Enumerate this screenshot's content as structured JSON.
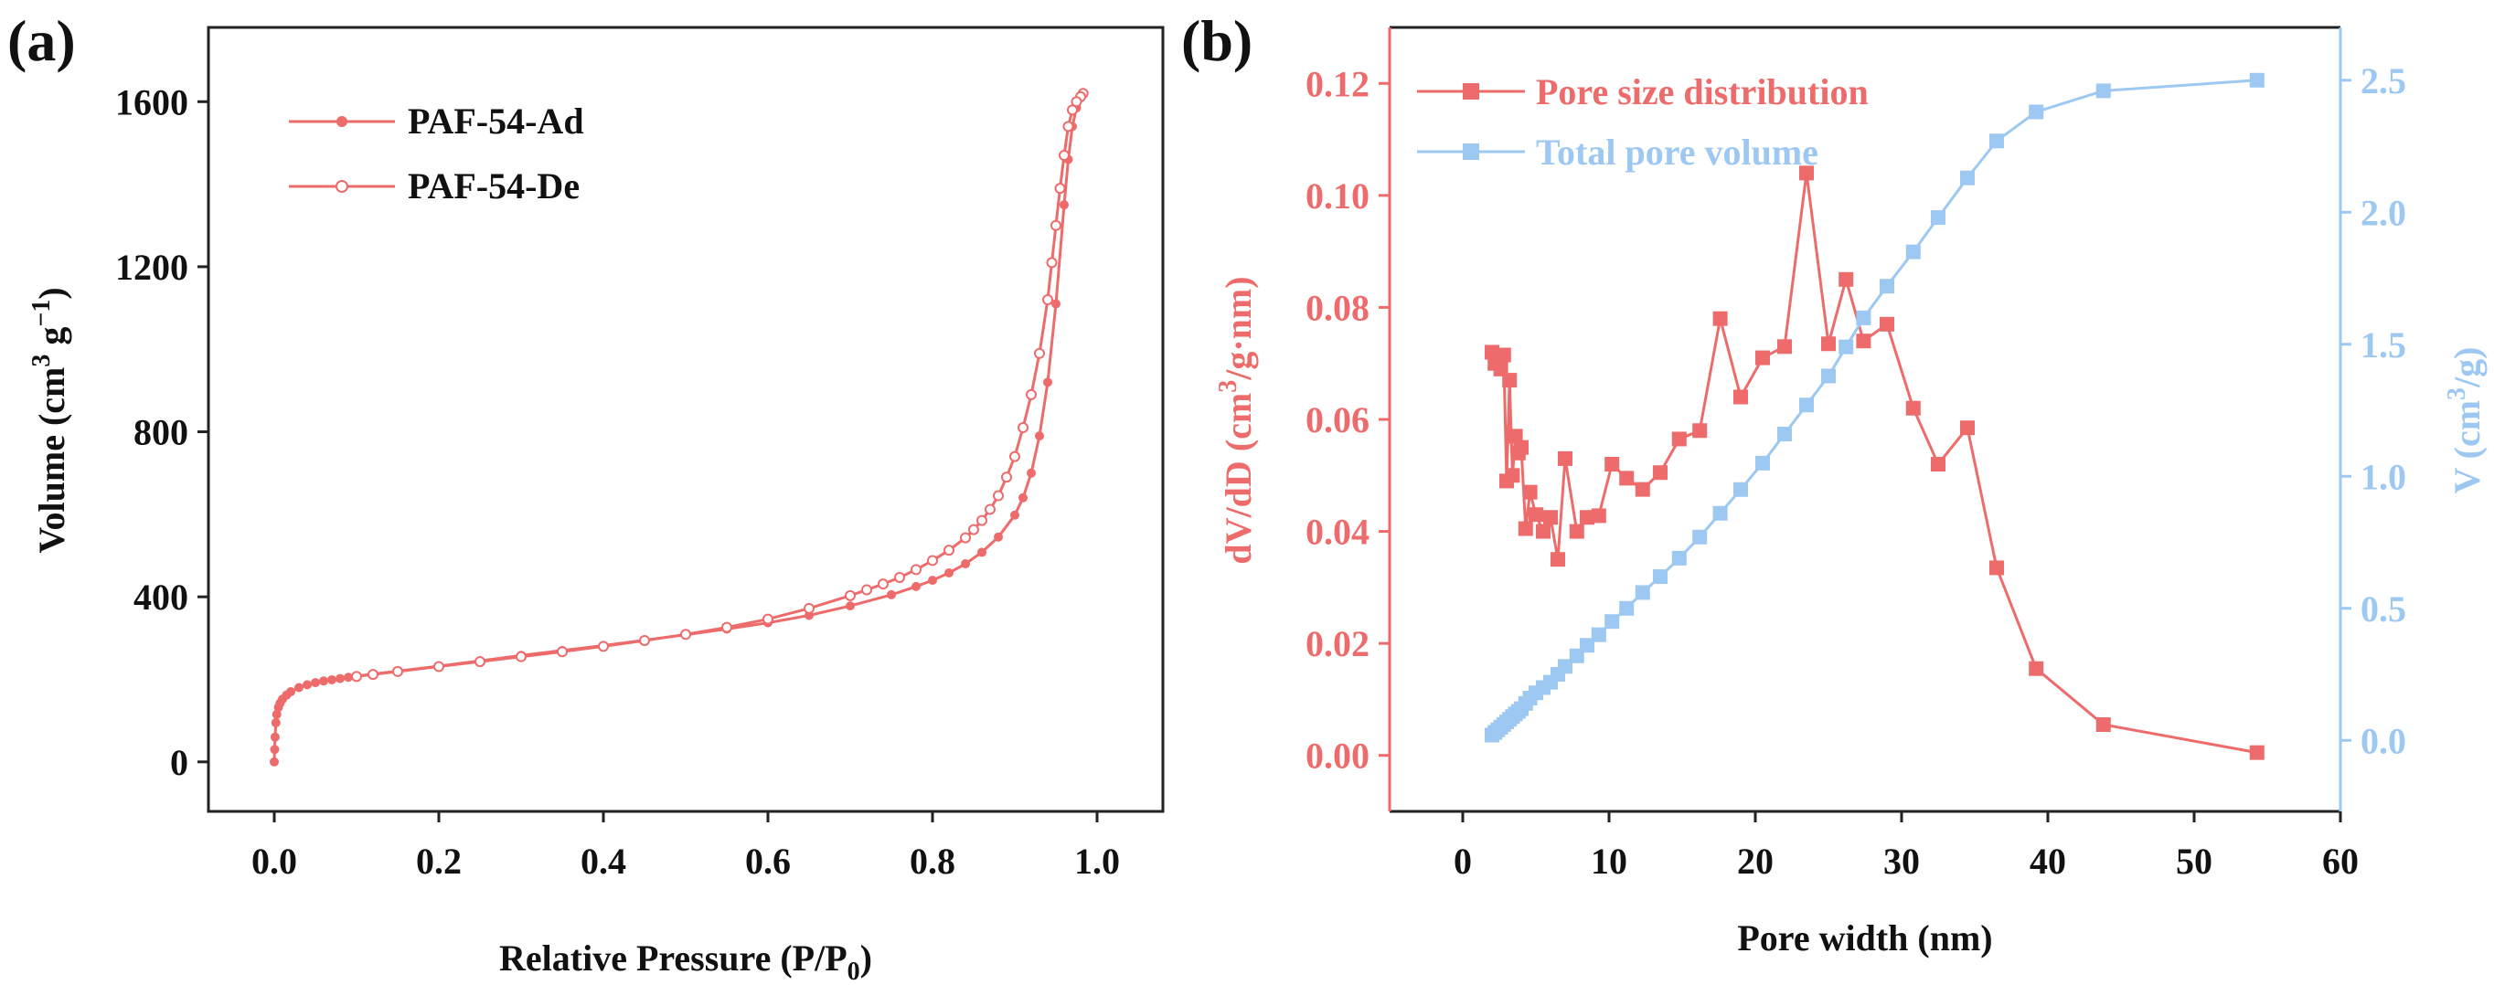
{
  "chart_data": [
    {
      "panel": "(a)",
      "type": "line",
      "xlabel": "Relative Pressure (P/P",
      "xlabel_sub": "0",
      "xlabel_end": ")",
      "ylabel": "Volume (cm",
      "ylabel_sup1": "3",
      "ylabel_mid": " g",
      "ylabel_sup2": "−1",
      "ylabel_end": ")",
      "xlim": [
        -0.08,
        1.08
      ],
      "ylim": [
        -120,
        1780
      ],
      "xticks": [
        0.0,
        0.2,
        0.4,
        0.6,
        0.8,
        1.0
      ],
      "xtick_labels": [
        "0.0",
        "0.2",
        "0.4",
        "0.6",
        "0.8",
        "1.0"
      ],
      "yticks": [
        0,
        400,
        800,
        1200,
        1600
      ],
      "ytick_labels": [
        "0",
        "400",
        "800",
        "1200",
        "1600"
      ],
      "legend_position": "top-left",
      "series": [
        {
          "name": "PAF-54-Ad",
          "color": "#EE6B6B",
          "marker": "filled-circle",
          "x": [
            0.0,
            0.0005,
            0.001,
            0.002,
            0.003,
            0.005,
            0.007,
            0.01,
            0.015,
            0.02,
            0.03,
            0.04,
            0.05,
            0.06,
            0.07,
            0.08,
            0.09,
            0.1,
            0.15,
            0.2,
            0.25,
            0.3,
            0.35,
            0.4,
            0.45,
            0.5,
            0.55,
            0.6,
            0.65,
            0.7,
            0.75,
            0.78,
            0.8,
            0.82,
            0.84,
            0.86,
            0.88,
            0.9,
            0.91,
            0.92,
            0.93,
            0.94,
            0.95,
            0.96,
            0.965,
            0.97,
            0.975,
            0.98,
            0.983
          ],
          "y": [
            0,
            30,
            60,
            95,
            115,
            132,
            142,
            152,
            162,
            170,
            180,
            187,
            192,
            196,
            199,
            202,
            205,
            208,
            220,
            232,
            245,
            258,
            270,
            282,
            295,
            308,
            322,
            337,
            355,
            378,
            405,
            425,
            440,
            458,
            480,
            508,
            545,
            598,
            640,
            700,
            790,
            920,
            1110,
            1350,
            1460,
            1540,
            1585,
            1610,
            1620
          ]
        },
        {
          "name": "PAF-54-De",
          "color": "#EE6B6B",
          "marker": "open-circle",
          "x": [
            0.983,
            0.98,
            0.975,
            0.97,
            0.965,
            0.96,
            0.955,
            0.95,
            0.945,
            0.94,
            0.93,
            0.92,
            0.91,
            0.9,
            0.89,
            0.88,
            0.87,
            0.86,
            0.85,
            0.84,
            0.82,
            0.8,
            0.78,
            0.76,
            0.74,
            0.72,
            0.7,
            0.65,
            0.6,
            0.55,
            0.5,
            0.45,
            0.4,
            0.35,
            0.3,
            0.25,
            0.2,
            0.15,
            0.12,
            0.1
          ],
          "y": [
            1620,
            1612,
            1600,
            1580,
            1540,
            1470,
            1390,
            1300,
            1210,
            1120,
            990,
            890,
            810,
            740,
            690,
            645,
            612,
            585,
            563,
            543,
            513,
            488,
            466,
            447,
            431,
            417,
            403,
            372,
            346,
            326,
            309,
            294,
            280,
            267,
            255,
            243,
            231,
            219,
            212,
            207
          ]
        }
      ]
    },
    {
      "panel": "(b)",
      "type": "line",
      "xlabel": "Pore width (nm)",
      "ylabel_left": "dV/dD (cm",
      "ylabel_left_sup": "3",
      "ylabel_left_end": "/g·nm)",
      "ylabel_right": "V (cm",
      "ylabel_right_sup": "3",
      "ylabel_right_end": "/g)",
      "xlim": [
        -5,
        60
      ],
      "ylim_left": [
        -0.01,
        0.13
      ],
      "ylim_right": [
        -0.269,
        2.7
      ],
      "xticks": [
        0,
        10,
        20,
        30,
        40,
        50,
        60
      ],
      "xtick_labels": [
        "0",
        "10",
        "20",
        "30",
        "40",
        "50",
        "60"
      ],
      "yticks_left": [
        0.0,
        0.02,
        0.04,
        0.06,
        0.08,
        0.1,
        0.12
      ],
      "ytick_labels_left": [
        "0.00",
        "0.02",
        "0.04",
        "0.06",
        "0.08",
        "0.10",
        "0.12"
      ],
      "yticks_right": [
        0.0,
        0.5,
        1.0,
        1.5,
        2.0,
        2.5
      ],
      "ytick_labels_right": [
        "0.0",
        "0.5",
        "1.0",
        "1.5",
        "2.0",
        "2.5"
      ],
      "legend_position": "top-left",
      "left_color": "#EE6B6B",
      "right_color": "#9CC8F2",
      "series": [
        {
          "name": "Pore size distribution",
          "axis": "left",
          "color": "#EE6B6B",
          "marker": "filled-square",
          "x": [
            2.0,
            2.2,
            2.4,
            2.6,
            2.8,
            3.0,
            3.2,
            3.4,
            3.6,
            3.8,
            4.0,
            4.3,
            4.6,
            5.0,
            5.5,
            6.0,
            6.5,
            7.0,
            7.8,
            8.5,
            9.3,
            10.2,
            11.2,
            12.3,
            13.5,
            14.8,
            16.2,
            17.6,
            19.0,
            20.5,
            22.0,
            23.5,
            25.0,
            26.2,
            27.4,
            29.0,
            30.8,
            32.5,
            34.5,
            36.5,
            39.2,
            43.8,
            54.3
          ],
          "y": [
            0.072,
            0.07,
            0.071,
            0.069,
            0.0715,
            0.049,
            0.067,
            0.05,
            0.057,
            0.054,
            0.055,
            0.0405,
            0.047,
            0.043,
            0.04,
            0.0425,
            0.035,
            0.053,
            0.04,
            0.0425,
            0.0428,
            0.052,
            0.0495,
            0.0475,
            0.0505,
            0.0565,
            0.058,
            0.078,
            0.064,
            0.071,
            0.073,
            0.104,
            0.0735,
            0.085,
            0.074,
            0.077,
            0.062,
            0.052,
            0.0585,
            0.0335,
            0.0155,
            0.0055,
            0.0005
          ]
        },
        {
          "name": "Total pore volume",
          "axis": "right",
          "color": "#9CC8F2",
          "marker": "filled-square",
          "x": [
            2.0,
            2.2,
            2.4,
            2.6,
            2.8,
            3.0,
            3.2,
            3.4,
            3.6,
            3.8,
            4.0,
            4.3,
            4.6,
            5.0,
            5.5,
            6.0,
            6.5,
            7.0,
            7.8,
            8.5,
            9.3,
            10.2,
            11.2,
            12.3,
            13.5,
            14.8,
            16.2,
            17.6,
            19.0,
            20.5,
            22.0,
            23.5,
            25.0,
            26.2,
            27.4,
            29.0,
            30.8,
            32.5,
            34.5,
            36.5,
            39.2,
            43.8,
            54.3
          ],
          "y": [
            0.02,
            0.03,
            0.04,
            0.05,
            0.06,
            0.07,
            0.08,
            0.09,
            0.1,
            0.11,
            0.12,
            0.14,
            0.16,
            0.18,
            0.2,
            0.22,
            0.25,
            0.28,
            0.32,
            0.36,
            0.4,
            0.45,
            0.5,
            0.56,
            0.62,
            0.69,
            0.77,
            0.86,
            0.95,
            1.05,
            1.16,
            1.27,
            1.38,
            1.49,
            1.6,
            1.72,
            1.85,
            1.98,
            2.13,
            2.27,
            2.38,
            2.46,
            2.5
          ]
        }
      ]
    }
  ]
}
